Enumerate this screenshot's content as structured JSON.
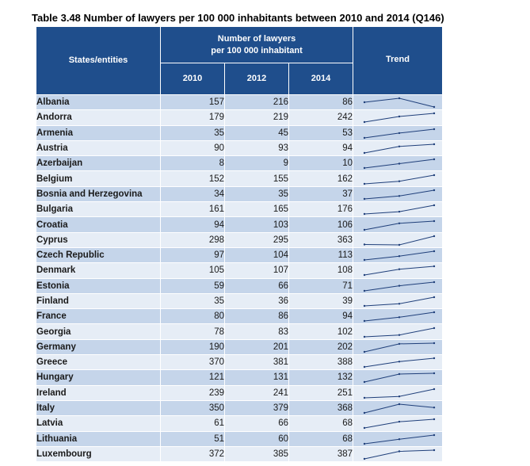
{
  "title": "Table 3.48 Number of lawyers per 100 000 inhabitants between 2010 and 2014 (Q146)",
  "headers": {
    "states": "States/entities",
    "number_line1": "Number of lawyers",
    "number_line2": "per 100 000 inhabitant",
    "trend": "Trend",
    "years": [
      "2010",
      "2012",
      "2014"
    ]
  },
  "colors": {
    "header_bg": "#1f4e8c",
    "row_dark": "#c5d5ea",
    "row_light": "#e6edf6",
    "sparkline": "#1f3f7a"
  },
  "rows": [
    {
      "name": "Albania",
      "v2010": 157,
      "v2012": 216,
      "v2014": 86
    },
    {
      "name": "Andorra",
      "v2010": 179,
      "v2012": 219,
      "v2014": 242
    },
    {
      "name": "Armenia",
      "v2010": 35,
      "v2012": 45,
      "v2014": 53
    },
    {
      "name": "Austria",
      "v2010": 90,
      "v2012": 93,
      "v2014": 94
    },
    {
      "name": "Azerbaijan",
      "v2010": 8,
      "v2012": 9,
      "v2014": 10
    },
    {
      "name": "Belgium",
      "v2010": 152,
      "v2012": 155,
      "v2014": 162
    },
    {
      "name": "Bosnia and Herzegovina",
      "v2010": 34,
      "v2012": 35,
      "v2014": 37
    },
    {
      "name": "Bulgaria",
      "v2010": 161,
      "v2012": 165,
      "v2014": 176
    },
    {
      "name": "Croatia",
      "v2010": 94,
      "v2012": 103,
      "v2014": 106
    },
    {
      "name": "Cyprus",
      "v2010": 298,
      "v2012": 295,
      "v2014": 363
    },
    {
      "name": "Czech Republic",
      "v2010": 97,
      "v2012": 104,
      "v2014": 113
    },
    {
      "name": "Denmark",
      "v2010": 105,
      "v2012": 107,
      "v2014": 108
    },
    {
      "name": "Estonia",
      "v2010": 59,
      "v2012": 66,
      "v2014": 71
    },
    {
      "name": "Finland",
      "v2010": 35,
      "v2012": 36,
      "v2014": 39
    },
    {
      "name": "France",
      "v2010": 80,
      "v2012": 86,
      "v2014": 94
    },
    {
      "name": "Georgia",
      "v2010": 78,
      "v2012": 83,
      "v2014": 102
    },
    {
      "name": "Germany",
      "v2010": 190,
      "v2012": 201,
      "v2014": 202
    },
    {
      "name": "Greece",
      "v2010": 370,
      "v2012": 381,
      "v2014": 388
    },
    {
      "name": "Hungary",
      "v2010": 121,
      "v2012": 131,
      "v2014": 132
    },
    {
      "name": "Ireland",
      "v2010": 239,
      "v2012": 241,
      "v2014": 251
    },
    {
      "name": "Italy",
      "v2010": 350,
      "v2012": 379,
      "v2014": 368
    },
    {
      "name": "Latvia",
      "v2010": 61,
      "v2012": 66,
      "v2014": 68
    },
    {
      "name": "Lithuania",
      "v2010": 51,
      "v2012": 60,
      "v2014": 68
    },
    {
      "name": "Luxembourg",
      "v2010": 372,
      "v2012": 385,
      "v2014": 387
    }
  ]
}
